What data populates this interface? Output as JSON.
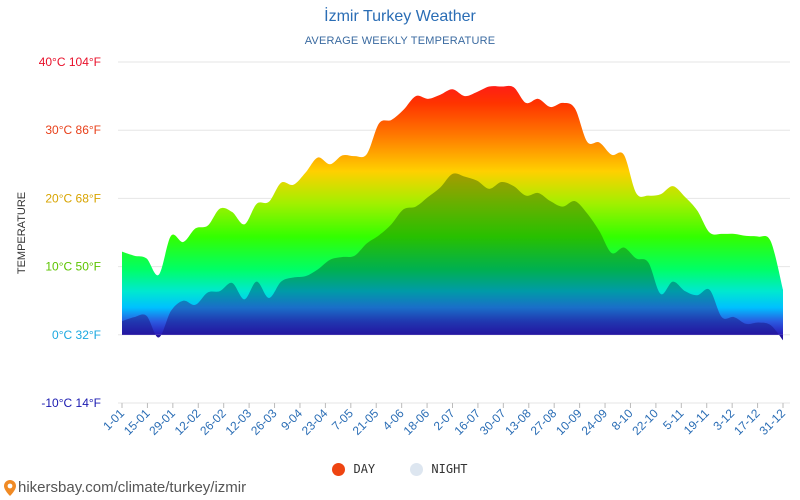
{
  "chart_title": "İzmir Turkey Weather",
  "chart_subtitle": "AVERAGE WEEKLY TEMPERATURE",
  "footer_text": "hikersbay.com/climate/turkey/izmir",
  "legend": [
    {
      "label": "DAY",
      "color": "#ee4411"
    },
    {
      "label": "NIGHT",
      "color": "#dde6f0"
    }
  ],
  "chart_data": {
    "type": "area",
    "ylabel": "TEMPERATURE",
    "ylim": [
      -10,
      40
    ],
    "y_ticks": [
      {
        "value": 40,
        "label": "40°C 104°F",
        "color": "#e8102a"
      },
      {
        "value": 30,
        "label": "30°C 86°F",
        "color": "#e8401a"
      },
      {
        "value": 20,
        "label": "20°C 68°F",
        "color": "#d8a400"
      },
      {
        "value": 10,
        "label": "10°C 50°F",
        "color": "#5cc400"
      },
      {
        "value": 0,
        "label": "0°C 32°F",
        "color": "#1aa8e0"
      },
      {
        "value": -10,
        "label": "-10°C 14°F",
        "color": "#1a1ab0"
      }
    ],
    "x_tick_labels": [
      "1-01",
      "15-01",
      "29-01",
      "12-02",
      "26-02",
      "12-03",
      "26-03",
      "9-04",
      "23-04",
      "7-05",
      "21-05",
      "4-06",
      "18-06",
      "2-07",
      "16-07",
      "30-07",
      "13-08",
      "27-08",
      "10-09",
      "24-09",
      "8-10",
      "22-10",
      "5-11",
      "19-11",
      "3-12",
      "17-12",
      "31-12"
    ],
    "series": [
      {
        "name": "DAY",
        "values": [
          12.2,
          11.6,
          11.2,
          8.8,
          14.5,
          13.6,
          15.6,
          16.0,
          18.5,
          18.0,
          16.2,
          19.2,
          19.5,
          22.3,
          22.0,
          23.8,
          26.0,
          25.0,
          26.3,
          26.2,
          26.5,
          31.0,
          31.5,
          33.0,
          35.0,
          34.6,
          35.2,
          36.0,
          35.0,
          35.6,
          36.4,
          36.4,
          36.3,
          34.0,
          34.6,
          33.4,
          34.0,
          33.2,
          28.3,
          28.2,
          26.4,
          26.4,
          20.8,
          20.4,
          20.6,
          21.8,
          20.2,
          18.2,
          15.0,
          14.8,
          14.8,
          14.5,
          14.4,
          13.7,
          6.6
        ]
      },
      {
        "name": "NIGHT",
        "values": [
          2.0,
          2.6,
          2.8,
          -0.4,
          3.5,
          5.0,
          4.4,
          6.2,
          6.4,
          7.6,
          5.2,
          7.8,
          5.4,
          7.8,
          8.4,
          8.6,
          9.6,
          11.0,
          11.4,
          11.6,
          13.4,
          14.6,
          16.2,
          18.4,
          18.8,
          20.2,
          21.6,
          23.6,
          23.2,
          22.6,
          21.4,
          22.4,
          21.8,
          20.4,
          20.8,
          19.6,
          18.8,
          19.6,
          17.8,
          15.2,
          12.0,
          12.8,
          11.2,
          10.6,
          6.0,
          7.8,
          6.4,
          5.8,
          6.6,
          2.6,
          2.6,
          1.6,
          1.8,
          1.4,
          -0.8
        ]
      }
    ],
    "grid": true
  }
}
